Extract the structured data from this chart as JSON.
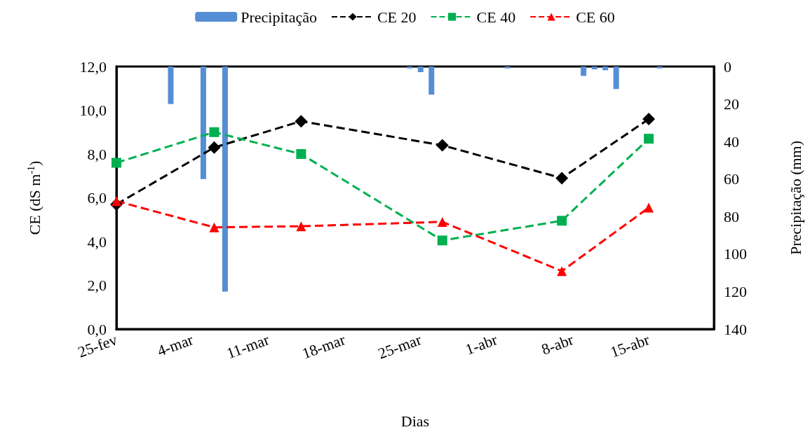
{
  "chart_data": {
    "type": "line",
    "xlabel": "Dias",
    "ylabel": "CE (dS m$^{-1}$)",
    "y2label": "Precipitação (mm)",
    "legend": "top",
    "line_style": "dashed",
    "x": [
      "--02-25",
      "--03-06",
      "--03-14",
      "--03-27",
      "--04-07",
      "--04-15"
    ],
    "xlim": [
      "--02-25",
      "--04-21"
    ],
    "xticks": [
      {
        "value": "--02-25",
        "label": "25-fev"
      },
      {
        "value": "--03-04",
        "label": "4-mar"
      },
      {
        "value": "--03-11",
        "label": "11-mar"
      },
      {
        "value": "--03-18",
        "label": "18-mar"
      },
      {
        "value": "--03-25",
        "label": "25-mar"
      },
      {
        "value": "--04-01",
        "label": "1-abr"
      },
      {
        "value": "--04-08",
        "label": "8-abr"
      },
      {
        "value": "--04-15",
        "label": "15-abr"
      }
    ],
    "ylim": [
      0,
      12
    ],
    "yticks": [
      {
        "value": 0,
        "label": "0,0"
      },
      {
        "value": 2,
        "label": "2,0"
      },
      {
        "value": 4,
        "label": "4,0"
      },
      {
        "value": 6,
        "label": "6,0"
      },
      {
        "value": 8,
        "label": "8,0"
      },
      {
        "value": 10,
        "label": "10,0"
      },
      {
        "value": 12,
        "label": "12,0"
      }
    ],
    "y2lim": [
      140,
      0
    ],
    "y2ticks": [
      0,
      20,
      40,
      60,
      80,
      100,
      120,
      140
    ],
    "series": [
      {
        "name": "Precipitação",
        "type": "bar",
        "axis": "y2",
        "color": "#558ed5",
        "x": [
          "--03-02",
          "--03-05",
          "--03-07",
          "--03-24",
          "--03-25",
          "--03-26",
          "--04-02",
          "--04-09",
          "--04-10",
          "--04-11",
          "--04-12",
          "--04-16"
        ],
        "values": [
          20,
          60,
          120,
          1,
          3,
          15,
          1,
          5,
          1.5,
          2,
          12,
          1
        ]
      },
      {
        "name": "CE 20",
        "color": "#000000",
        "marker": "diamond",
        "values": [
          5.7,
          8.3,
          9.5,
          8.4,
          6.9,
          9.6
        ]
      },
      {
        "name": "CE 40",
        "color": "#00b050",
        "marker": "square",
        "values": [
          7.6,
          9.0,
          8.0,
          4.05,
          4.95,
          8.7
        ]
      },
      {
        "name": "CE 60",
        "color": "#ff0000",
        "marker": "triangle",
        "values": [
          5.85,
          4.65,
          4.7,
          4.9,
          2.65,
          5.55
        ]
      }
    ]
  }
}
